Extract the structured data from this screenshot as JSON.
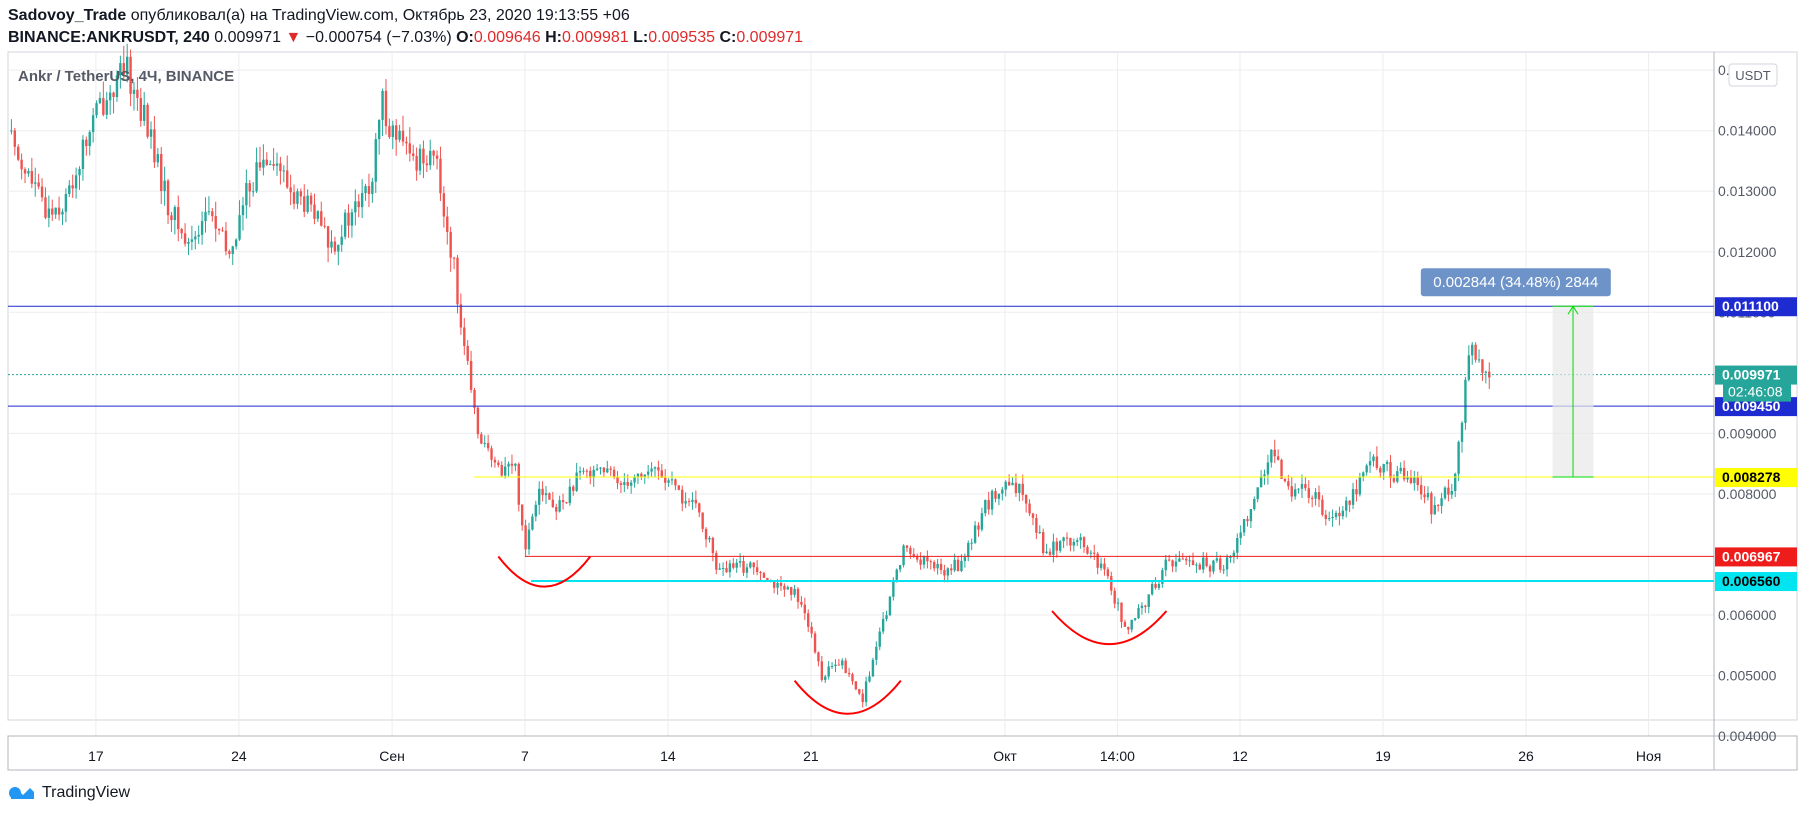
{
  "header": {
    "author": "Sadovoy_Trade",
    "published_text": " опубликовал(а) на TradingView.com, Октябрь 23, 2020 19:13:55 +06",
    "symbol": "BINANCE:ANKRUSDT, 240",
    "last_price": "0.009971",
    "change_arrow": "▼",
    "change": "−0.000754 (−7.03%)",
    "o_label": "O:",
    "o_value": "0.009646",
    "h_label": "H:",
    "h_value": "0.009981",
    "l_label": "L:",
    "l_value": "0.009535",
    "c_label": "C:",
    "c_value": "0.009971"
  },
  "footer": {
    "brand": "TradingView"
  },
  "chart_data": {
    "type": "candlestick",
    "title": "Ankr / TetherUS, 4Ч, BINANCE",
    "currency_button": "USDT",
    "y_axis": {
      "ylim": [
        0.004,
        0.0153
      ],
      "ticks": [
        {
          "value": 0.015,
          "label": "0.015000"
        },
        {
          "value": 0.014,
          "label": "0.014000"
        },
        {
          "value": 0.013,
          "label": "0.013000"
        },
        {
          "value": 0.012,
          "label": "0.012000"
        },
        {
          "value": 0.011,
          "label": "0.011000"
        },
        {
          "value": 0.009,
          "label": "0.009000"
        },
        {
          "value": 0.008,
          "label": "0.008000"
        },
        {
          "value": 0.006,
          "label": "0.006000"
        },
        {
          "value": 0.005,
          "label": "0.005000"
        },
        {
          "value": 0.004,
          "label": "0.004000"
        }
      ]
    },
    "x_axis": {
      "xlim_days": [
        -4.3,
        79.2
      ],
      "ticks": [
        {
          "day": 0,
          "label": "17"
        },
        {
          "day": 7,
          "label": "24"
        },
        {
          "day": 14.5,
          "label": "Сен"
        },
        {
          "day": 21,
          "label": "7"
        },
        {
          "day": 28,
          "label": "14"
        },
        {
          "day": 35,
          "label": "21"
        },
        {
          "day": 44.5,
          "label": "Окт"
        },
        {
          "day": 50,
          "label": "14:00"
        },
        {
          "day": 56,
          "label": "12"
        },
        {
          "day": 63,
          "label": "19"
        },
        {
          "day": 70,
          "label": "26"
        },
        {
          "day": 76,
          "label": "Ноя"
        }
      ]
    },
    "price_path": [
      [
        -4.3,
        0.014
      ],
      [
        -3.5,
        0.0134
      ],
      [
        -2.5,
        0.0127
      ],
      [
        -1.5,
        0.0128
      ],
      [
        0,
        0.0143
      ],
      [
        0.8,
        0.0147
      ],
      [
        1.5,
        0.015
      ],
      [
        2.5,
        0.0141
      ],
      [
        3.5,
        0.0128
      ],
      [
        4.5,
        0.0121
      ],
      [
        5.5,
        0.0127
      ],
      [
        6.5,
        0.0119
      ],
      [
        7.5,
        0.0131
      ],
      [
        8.5,
        0.0137
      ],
      [
        9.5,
        0.013
      ],
      [
        10.5,
        0.0127
      ],
      [
        11.5,
        0.0121
      ],
      [
        12.5,
        0.0126
      ],
      [
        13.5,
        0.0131
      ],
      [
        14,
        0.0145
      ],
      [
        14.5,
        0.014
      ],
      [
        15.5,
        0.0135
      ],
      [
        16.5,
        0.0137
      ],
      [
        17.5,
        0.0118
      ],
      [
        18.5,
        0.0093
      ],
      [
        19.5,
        0.0084
      ],
      [
        20.5,
        0.0085
      ],
      [
        21,
        0.0071
      ],
      [
        21.7,
        0.0082
      ],
      [
        22.5,
        0.0077
      ],
      [
        23.5,
        0.0082
      ],
      [
        24.5,
        0.0085
      ],
      [
        25.5,
        0.0082
      ],
      [
        26.5,
        0.0083
      ],
      [
        27.5,
        0.0084
      ],
      [
        28.5,
        0.008
      ],
      [
        29.5,
        0.0077
      ],
      [
        30.5,
        0.0067
      ],
      [
        31.5,
        0.0068
      ],
      [
        32.5,
        0.0068
      ],
      [
        33.5,
        0.0064
      ],
      [
        34.5,
        0.0063
      ],
      [
        35.5,
        0.005
      ],
      [
        36.5,
        0.0052
      ],
      [
        37.5,
        0.0046
      ],
      [
        38.5,
        0.0058
      ],
      [
        39.5,
        0.0071
      ],
      [
        40.5,
        0.0069
      ],
      [
        41.5,
        0.0067
      ],
      [
        42.5,
        0.0069
      ],
      [
        43.5,
        0.0078
      ],
      [
        44.5,
        0.0081
      ],
      [
        45.5,
        0.008
      ],
      [
        46.5,
        0.007
      ],
      [
        47.5,
        0.0073
      ],
      [
        48.5,
        0.0071
      ],
      [
        49.5,
        0.0066
      ],
      [
        50.5,
        0.0057
      ],
      [
        51.5,
        0.0063
      ],
      [
        52.5,
        0.0069
      ],
      [
        53.5,
        0.0069
      ],
      [
        54.5,
        0.0068
      ],
      [
        55.5,
        0.0069
      ],
      [
        56.5,
        0.0078
      ],
      [
        57.5,
        0.0086
      ],
      [
        58.5,
        0.0081
      ],
      [
        59.5,
        0.008
      ],
      [
        60.5,
        0.0076
      ],
      [
        61.5,
        0.008
      ],
      [
        62.5,
        0.0086
      ],
      [
        63.5,
        0.0083
      ],
      [
        64.5,
        0.0083
      ],
      [
        65.5,
        0.0077
      ],
      [
        66.5,
        0.0082
      ],
      [
        67,
        0.0097
      ],
      [
        67.4,
        0.0106
      ],
      [
        67.8,
        0.0099
      ],
      [
        68.2,
        0.0099
      ]
    ],
    "horizontal_lines": [
      {
        "value": 0.0111,
        "color": "#1e2bd0",
        "label": "0.011100",
        "label_bg": "#1e2bd0",
        "label_color": "#ffffff"
      },
      {
        "value": 0.009971,
        "color": "#26a69a",
        "dotted": true,
        "label": "0.009971",
        "label_bg": "#26a69a",
        "label_color": "#ffffff"
      },
      {
        "value": 0.00945,
        "color": "#1e2bd0",
        "label": "0.009450",
        "label_bg": "#1e2bd0",
        "label_color": "#ffffff"
      },
      {
        "value": 0.008278,
        "color": "#ffff00",
        "label": "0.008278",
        "label_bg": "#ffff00",
        "label_color": "#000000",
        "start_day": 18.5
      },
      {
        "value": 0.006967,
        "color": "#ef1c1c",
        "label": "0.006967",
        "label_bg": "#ef1c1c",
        "label_color": "#ffffff",
        "start_day": 21
      },
      {
        "value": 0.00656,
        "color": "#00e5ef",
        "label": "0.006560",
        "label_bg": "#00e5ef",
        "label_color": "#000000",
        "start_day": 21.3,
        "thick": true
      }
    ],
    "countdown": {
      "label": "02:46:08",
      "value": 0.00969,
      "bg": "#26a69a"
    },
    "measure": {
      "label": "0.002844 (34.48%) 2844",
      "from_value": 0.008278,
      "to_value": 0.0111,
      "x_day": 71.3,
      "x_end_day": 73.3,
      "label_center_day": 69.5
    },
    "arcs": [
      {
        "start_day": 19.7,
        "end_day": 24.2,
        "value": 0.0068,
        "depth": 0.00025
      },
      {
        "start_day": 34.2,
        "end_day": 39.4,
        "value": 0.00475,
        "depth": 0.0003
      },
      {
        "start_day": 46.8,
        "end_day": 52.4,
        "value": 0.0059,
        "depth": 0.0003
      }
    ],
    "colors": {
      "up": "#26a69a",
      "down": "#ef5350",
      "grid": "#ecedef"
    }
  }
}
